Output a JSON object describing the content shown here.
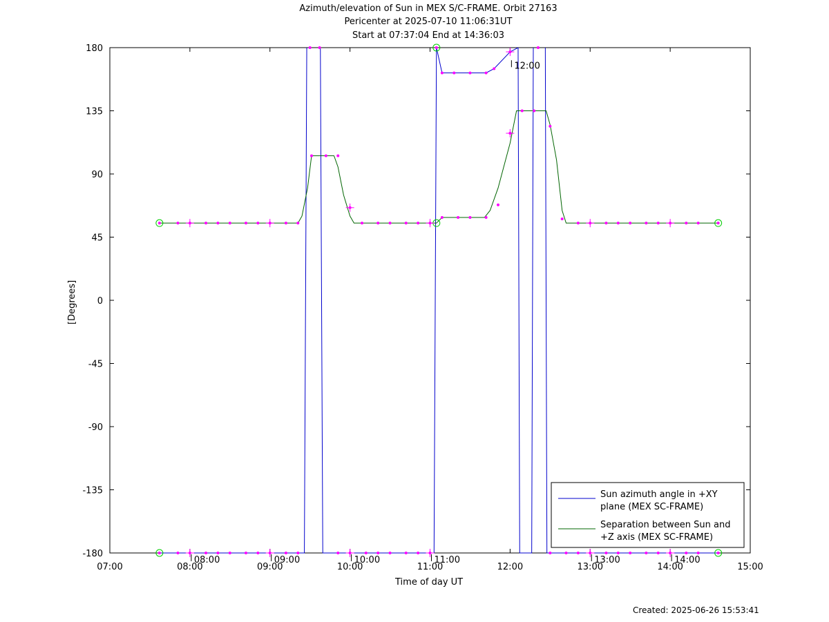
{
  "header": {
    "title": "Azimuth/elevation of Sun in MEX S/C-FRAME.  Orbit 27163",
    "subtitle1": "Pericenter at 2025-07-10 11:06:31UT",
    "subtitle2": "Start at 07:37:04 End at 14:36:03"
  },
  "footer": {
    "created": "Created: 2025-06-26 15:53:41"
  },
  "chart_data": {
    "type": "line",
    "xlabel": "Time of day UT",
    "ylabel": "[Degrees]",
    "x_unit": "hours (time of day UT)",
    "xlim": [
      7.0,
      15.0
    ],
    "ylim": [
      -180,
      180
    ],
    "x_ticks": [
      7,
      8,
      9,
      10,
      11,
      12,
      13,
      14,
      15
    ],
    "x_tick_labels": [
      "07:00",
      "08:00",
      "09:00",
      "10:00",
      "11:00",
      "12:00",
      "13:00",
      "14:00",
      "15:00"
    ],
    "y_ticks": [
      180,
      135,
      90,
      45,
      0,
      -45,
      -90,
      -135,
      -180
    ],
    "y_tick_labels": [
      "180",
      "135",
      "90",
      "45",
      "0",
      "-45",
      "-90",
      "-135",
      "-180"
    ],
    "legend_position": "bottom-right",
    "legend": [
      {
        "label_line1": "Sun azimuth angle in +XY",
        "label_line2": "plane (MEX SC-FRAME)",
        "color": "#0000cc"
      },
      {
        "label_line1": "Separation between Sun and",
        "label_line2": "+Z axis (MEX SC-FRAME)",
        "color": "#006400"
      }
    ],
    "in_plot_labels": [
      {
        "text": "08:00",
        "x": 8.0,
        "y": -180
      },
      {
        "text": "09:00",
        "x": 9.0,
        "y": -180
      },
      {
        "text": "10:00",
        "x": 10.0,
        "y": -180
      },
      {
        "text": "11:00",
        "x": 11.0,
        "y": -180
      },
      {
        "text": "12:00",
        "x": 12.0,
        "y": 172
      },
      {
        "text": "13:00",
        "x": 13.0,
        "y": -180
      },
      {
        "text": "14:00",
        "x": 14.0,
        "y": -180
      }
    ],
    "series": [
      {
        "name": "Sun azimuth angle in +XY plane (MEX SC-FRAME)",
        "color": "#0000cc",
        "segments": [
          [
            [
              7.62,
              -180
            ],
            [
              9.43,
              -180
            ],
            [
              9.46,
              180
            ]
          ],
          [
            [
              9.63,
              180
            ],
            [
              9.66,
              -180
            ],
            [
              11.05,
              -180
            ],
            [
              11.08,
              180
            ],
            [
              11.15,
              162
            ],
            [
              11.3,
              162
            ],
            [
              11.5,
              162
            ],
            [
              11.7,
              162
            ],
            [
              11.8,
              165
            ],
            [
              12.0,
              177
            ],
            [
              12.1,
              180
            ]
          ],
          [
            [
              12.1,
              180
            ],
            [
              12.12,
              -180
            ],
            [
              12.27,
              -180
            ],
            [
              12.29,
              180
            ]
          ],
          [
            [
              12.44,
              180
            ],
            [
              12.46,
              -180
            ],
            [
              14.6,
              -180
            ]
          ]
        ],
        "markers": [
          [
            7.62,
            -180
          ],
          [
            7.85,
            -180
          ],
          [
            8.0,
            -180
          ],
          [
            8.2,
            -180
          ],
          [
            8.35,
            -180
          ],
          [
            8.5,
            -180
          ],
          [
            8.7,
            -180
          ],
          [
            8.85,
            -180
          ],
          [
            9.0,
            -180
          ],
          [
            9.2,
            -180
          ],
          [
            9.35,
            -180
          ],
          [
            9.5,
            180
          ],
          [
            9.62,
            180
          ],
          [
            9.85,
            -180
          ],
          [
            10.0,
            -180
          ],
          [
            10.2,
            -180
          ],
          [
            10.35,
            -180
          ],
          [
            10.5,
            -180
          ],
          [
            10.7,
            -180
          ],
          [
            10.85,
            -180
          ],
          [
            11.0,
            -180
          ],
          [
            11.08,
            180
          ],
          [
            11.15,
            162
          ],
          [
            11.3,
            162
          ],
          [
            11.5,
            162
          ],
          [
            11.7,
            162
          ],
          [
            11.8,
            165
          ],
          [
            12.0,
            177
          ],
          [
            12.35,
            180
          ],
          [
            12.5,
            -180
          ],
          [
            12.7,
            -180
          ],
          [
            12.85,
            -180
          ],
          [
            13.0,
            -180
          ],
          [
            13.2,
            -180
          ],
          [
            13.35,
            -180
          ],
          [
            13.5,
            -180
          ],
          [
            13.7,
            -180
          ],
          [
            13.85,
            -180
          ],
          [
            14.0,
            -180
          ],
          [
            14.2,
            -180
          ],
          [
            14.35,
            -180
          ],
          [
            14.6,
            -180
          ]
        ],
        "circles": [
          [
            7.62,
            -180
          ],
          [
            11.08,
            180
          ],
          [
            14.6,
            -180
          ]
        ]
      },
      {
        "name": "Separation between Sun and +Z axis (MEX SC-FRAME)",
        "color": "#006400",
        "points": [
          [
            7.62,
            55
          ],
          [
            9.35,
            55
          ],
          [
            9.4,
            60
          ],
          [
            9.47,
            80
          ],
          [
            9.52,
            103
          ],
          [
            9.8,
            103
          ],
          [
            9.85,
            95
          ],
          [
            9.92,
            75
          ],
          [
            10.0,
            60
          ],
          [
            10.05,
            55
          ],
          [
            11.08,
            55
          ],
          [
            11.15,
            59
          ],
          [
            11.68,
            59
          ],
          [
            11.75,
            64
          ],
          [
            11.85,
            80
          ],
          [
            12.0,
            112
          ],
          [
            12.08,
            135
          ],
          [
            12.45,
            135
          ],
          [
            12.5,
            125
          ],
          [
            12.58,
            100
          ],
          [
            12.65,
            64
          ],
          [
            12.7,
            55
          ],
          [
            14.6,
            55
          ]
        ],
        "markers": [
          [
            7.62,
            55
          ],
          [
            7.85,
            55
          ],
          [
            8.0,
            55
          ],
          [
            8.2,
            55
          ],
          [
            8.35,
            55
          ],
          [
            8.5,
            55
          ],
          [
            8.7,
            55
          ],
          [
            8.85,
            55
          ],
          [
            9.0,
            55
          ],
          [
            9.2,
            55
          ],
          [
            9.35,
            55
          ],
          [
            9.52,
            103
          ],
          [
            9.7,
            103
          ],
          [
            9.85,
            103
          ],
          [
            10.0,
            66
          ],
          [
            10.15,
            55
          ],
          [
            10.35,
            55
          ],
          [
            10.5,
            55
          ],
          [
            10.7,
            55
          ],
          [
            10.85,
            55
          ],
          [
            11.0,
            55
          ],
          [
            11.15,
            59
          ],
          [
            11.35,
            59
          ],
          [
            11.5,
            59
          ],
          [
            11.7,
            59
          ],
          [
            11.85,
            68
          ],
          [
            12.0,
            119
          ],
          [
            12.15,
            135
          ],
          [
            12.3,
            135
          ],
          [
            12.5,
            124
          ],
          [
            12.65,
            58
          ],
          [
            12.85,
            55
          ],
          [
            13.0,
            55
          ],
          [
            13.2,
            55
          ],
          [
            13.35,
            55
          ],
          [
            13.5,
            55
          ],
          [
            13.7,
            55
          ],
          [
            13.85,
            55
          ],
          [
            14.0,
            55
          ],
          [
            14.2,
            55
          ],
          [
            14.35,
            55
          ],
          [
            14.6,
            55
          ]
        ],
        "circles": [
          [
            7.62,
            55
          ],
          [
            11.08,
            55
          ],
          [
            14.6,
            55
          ]
        ]
      }
    ],
    "hour_crosses": [
      [
        8.0,
        -180
      ],
      [
        9.0,
        -180
      ],
      [
        10.0,
        -180
      ],
      [
        11.0,
        -180
      ],
      [
        12.0,
        177
      ],
      [
        13.0,
        -180
      ],
      [
        14.0,
        -180
      ],
      [
        8.0,
        55
      ],
      [
        9.0,
        55
      ],
      [
        10.0,
        66
      ],
      [
        11.0,
        55
      ],
      [
        12.0,
        119
      ],
      [
        13.0,
        55
      ],
      [
        14.0,
        55
      ]
    ],
    "marker_color": "#ff00ff",
    "circle_color": "#00cc00"
  }
}
